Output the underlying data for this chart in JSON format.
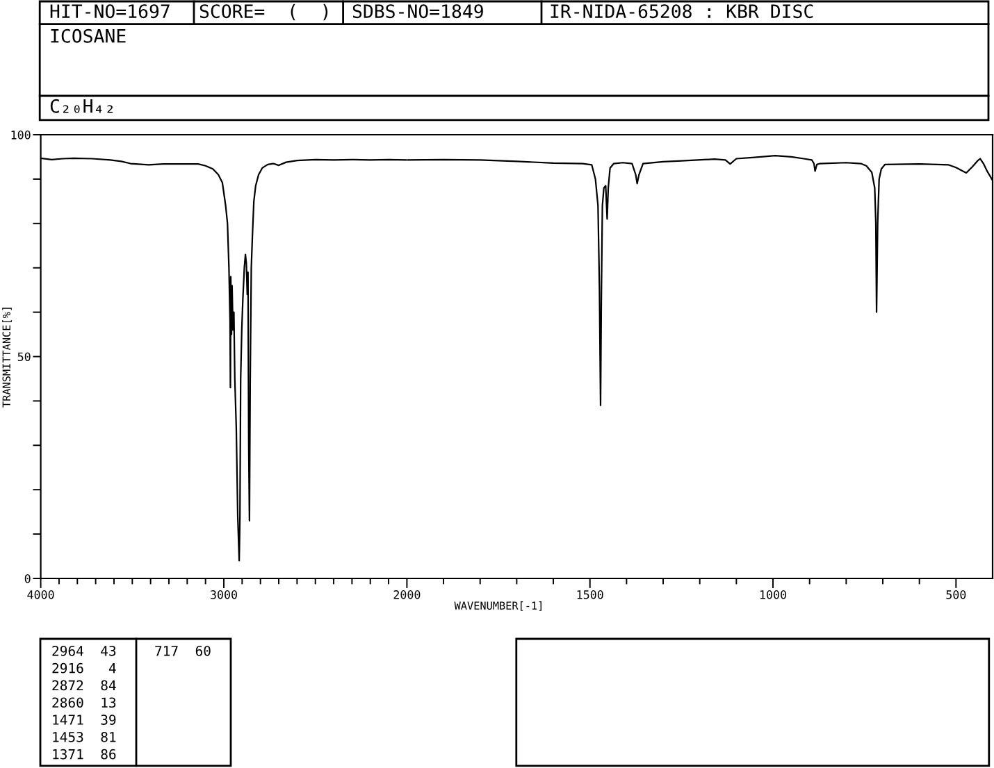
{
  "chart_data": [
    {
      "type": "line",
      "title": "ICOSANE",
      "subtitle": "C₂₀H₄₂",
      "ylabel": "TRANSMITTANCE[%]",
      "annotations": [
        "HIT-NO=1697",
        "SCORE=  (  )",
        "SDBS-NO=1849",
        "IR-NIDA-65208 : KBR DISC",
        "2964  43",
        "2916   4",
        "2872  84",
        "2860  13",
        "1471  39",
        "1453  81",
        "1371  86",
        "717  60"
      ],
      "x": [
        4000,
        3940,
        3880,
        3820,
        3720,
        3620,
        3560,
        3510,
        3410,
        3330,
        3260,
        3140,
        3100,
        3060,
        3030,
        3008,
        2990,
        2980,
        2972,
        2966,
        2964,
        2962,
        2958,
        2955,
        2950,
        2945,
        2940,
        2932,
        2924,
        2916,
        2912,
        2908,
        2902,
        2896,
        2888,
        2882,
        2877,
        2872,
        2868,
        2864,
        2860,
        2856,
        2850,
        2844,
        2836,
        2826,
        2810,
        2790,
        2760,
        2730,
        2700,
        2660,
        2600,
        2500,
        2400,
        2300,
        2200,
        2100,
        2000
      ],
      "series": [
        {
          "color": "#000000",
          "values": [
            94.7,
            94.4,
            94.6,
            94.7,
            94.6,
            94.3,
            94.0,
            93.5,
            93.2,
            93.4,
            93.4,
            93.4,
            93.0,
            92.3,
            91.0,
            89.2,
            84,
            80,
            70,
            58,
            43,
            68,
            55,
            66,
            56,
            60,
            45,
            34,
            14,
            4,
            14,
            45,
            56,
            63,
            70,
            73,
            71,
            64,
            69,
            30,
            13,
            44,
            70,
            77,
            85,
            88.5,
            91,
            92.5,
            93.3,
            93.5,
            93.1,
            93.8,
            94.2,
            94.4,
            94.3,
            94.4,
            94.3,
            94.4,
            94.3
          ]
        }
      ],
      "xlim": [
        4000,
        2000
      ],
      "ylim": [
        0,
        100
      ],
      "xticks": [
        4000,
        {
          "value": 3900,
          "label": null
        },
        {
          "value": 3800,
          "label": null
        },
        {
          "value": 3700,
          "label": null
        },
        {
          "value": 3600,
          "label": null
        },
        {
          "value": 3500,
          "label": null
        },
        {
          "value": 3400,
          "label": null
        },
        {
          "value": 3300,
          "label": null
        },
        {
          "value": 3200,
          "label": null
        },
        {
          "value": 3100,
          "label": null
        },
        3000,
        {
          "value": 2900,
          "label": null
        },
        {
          "value": 2800,
          "label": null
        },
        {
          "value": 2700,
          "label": null
        },
        {
          "value": 2600,
          "label": null
        },
        {
          "value": 2500,
          "label": null
        },
        {
          "value": 2400,
          "label": null
        },
        {
          "value": 2300,
          "label": null
        },
        {
          "value": 2200,
          "label": null
        },
        {
          "value": 2100,
          "label": null
        },
        2000
      ],
      "yticks": [
        0,
        {
          "value": 10,
          "label": null
        },
        {
          "value": 20,
          "label": null
        },
        {
          "value": 30,
          "label": null
        },
        {
          "value": 40,
          "label": null
        },
        50,
        {
          "value": 60,
          "label": null
        },
        {
          "value": 70,
          "label": null
        },
        {
          "value": 80,
          "label": null
        },
        {
          "value": 90,
          "label": null
        },
        100
      ]
    },
    {
      "type": "line",
      "xlabel": "WAVENUMBER[-1]",
      "x": [
        2000,
        1900,
        1800,
        1700,
        1600,
        1520,
        1495,
        1485,
        1478,
        1474,
        1471,
        1469,
        1466,
        1462,
        1457,
        1453,
        1450,
        1445,
        1435,
        1410,
        1385,
        1375,
        1371,
        1366,
        1355,
        1300,
        1250,
        1160,
        1130,
        1117,
        1100,
        1050,
        994,
        950,
        916,
        894,
        888,
        885,
        880,
        872,
        800,
        760,
        745,
        730,
        722,
        719,
        717,
        714,
        710,
        704,
        694,
        600,
        520,
        500,
        472,
        455,
        440,
        434,
        425,
        415,
        400
      ],
      "series": [
        {
          "color": "#000000",
          "values": [
            94.3,
            94.4,
            94.3,
            94.0,
            93.6,
            93.5,
            93.2,
            90,
            84,
            65,
            39,
            62,
            84,
            88,
            88.5,
            81,
            88,
            92.5,
            93.5,
            93.7,
            93.5,
            91,
            89,
            91,
            93.5,
            93.9,
            94.1,
            94.5,
            94.3,
            93.4,
            94.6,
            94.9,
            95.3,
            95.0,
            94.6,
            94.3,
            93.5,
            91.8,
            93.3,
            93.5,
            93.7,
            93.5,
            93.0,
            91.5,
            88,
            80,
            60,
            80,
            90,
            92.3,
            93.3,
            93.4,
            93.2,
            92.6,
            91.4,
            92.8,
            94.2,
            94.6,
            93.5,
            91.8,
            89.7
          ]
        }
      ],
      "xlim": [
        2000,
        400
      ],
      "ylim": [
        0,
        100
      ],
      "xticks": [
        {
          "value": 1900,
          "label": null
        },
        {
          "value": 1800,
          "label": null
        },
        {
          "value": 1700,
          "label": null
        },
        {
          "value": 1600,
          "label": null
        },
        1500,
        {
          "value": 1400,
          "label": null
        },
        {
          "value": 1300,
          "label": null
        },
        {
          "value": 1200,
          "label": null
        },
        {
          "value": 1100,
          "label": null
        },
        1000,
        {
          "value": 900,
          "label": null
        },
        {
          "value": 800,
          "label": null
        },
        {
          "value": 700,
          "label": null
        },
        {
          "value": 600,
          "label": null
        },
        500
      ],
      "tick_labels": "x"
    }
  ]
}
